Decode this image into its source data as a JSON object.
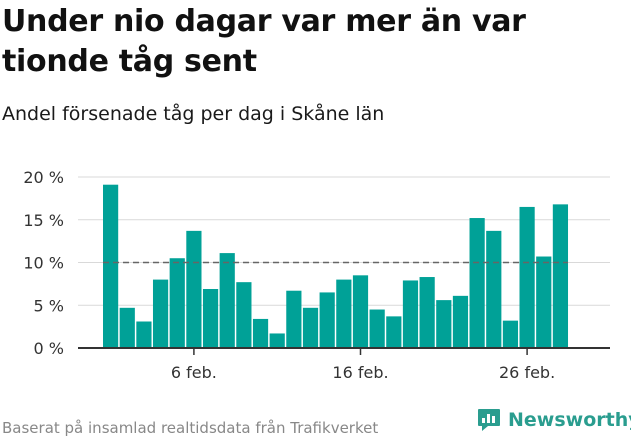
{
  "header": {
    "title": "Under nio dagar var mer än var tionde tåg sent",
    "subtitle": "Andel försenade tåg per dag i Skåne län"
  },
  "footer": {
    "source": "Baserat på insamlad realtidsdata från Trafikverket",
    "brand": "Newsworthy"
  },
  "colors": {
    "bar": "#00a197",
    "reference_line": "#666666",
    "grid": "#d9d9d9",
    "brand": "#2a9d8f"
  },
  "chart_data": {
    "type": "bar",
    "title": "Under nio dagar var mer än var tionde tåg sent",
    "subtitle": "Andel försenade tåg per dag i Skåne län",
    "xlabel": "",
    "ylabel": "",
    "x": [
      "1 feb.",
      "2 feb.",
      "3 feb.",
      "4 feb.",
      "5 feb.",
      "6 feb.",
      "7 feb.",
      "8 feb.",
      "9 feb.",
      "10 feb.",
      "11 feb.",
      "12 feb.",
      "13 feb.",
      "14 feb.",
      "15 feb.",
      "16 feb.",
      "17 feb.",
      "18 feb.",
      "19 feb.",
      "20 feb.",
      "21 feb.",
      "22 feb.",
      "23 feb.",
      "24 feb.",
      "25 feb.",
      "26 feb.",
      "27 feb.",
      "28 feb."
    ],
    "values": [
      19.1,
      4.7,
      3.1,
      8.0,
      10.5,
      13.7,
      6.9,
      11.1,
      7.7,
      3.4,
      1.7,
      6.7,
      4.7,
      6.5,
      8.0,
      8.5,
      4.5,
      3.7,
      7.9,
      8.3,
      5.6,
      6.1,
      15.2,
      13.7,
      3.2,
      16.5,
      10.7,
      16.8
    ],
    "x_ticks": [
      {
        "index": 5,
        "label": "6 feb."
      },
      {
        "index": 15,
        "label": "16 feb."
      },
      {
        "index": 25,
        "label": "26 feb."
      }
    ],
    "y_ticks": [
      {
        "value": 0,
        "label": "0 %"
      },
      {
        "value": 5,
        "label": "5 %"
      },
      {
        "value": 10,
        "label": "10 %"
      },
      {
        "value": 15,
        "label": "15 %"
      },
      {
        "value": 20,
        "label": "20 %"
      }
    ],
    "ylim": [
      0,
      20
    ],
    "reference_line": 10,
    "grid": true,
    "legend": "none"
  }
}
